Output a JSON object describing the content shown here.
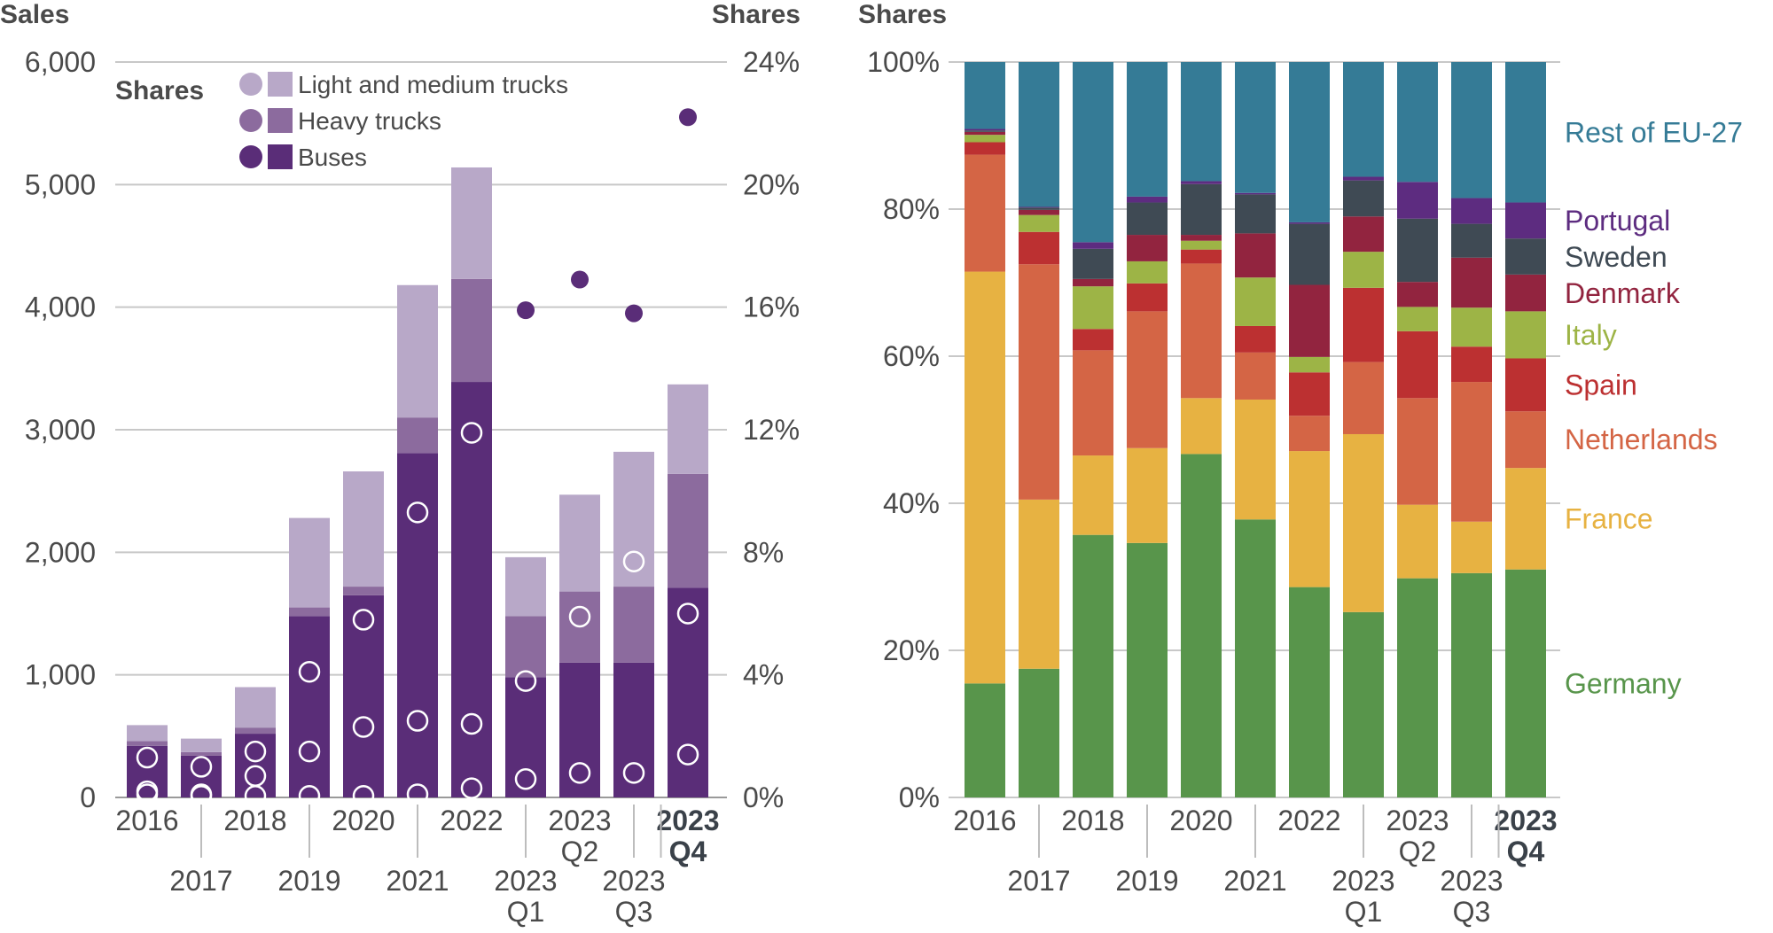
{
  "chart_data": [
    {
      "type": "bar",
      "subtype": "stacked-bar-with-share-markers",
      "categories": [
        "2016",
        "2017",
        "2018",
        "2019",
        "2020",
        "2021",
        "2022",
        "2023 Q1",
        "2023 Q2",
        "2023 Q3",
        "2023 Q4"
      ],
      "x_tick_labels": [
        {
          "line1": "2016",
          "line2": "",
          "row": 1,
          "bold": false
        },
        {
          "line1": "2017",
          "line2": "",
          "row": 2,
          "bold": false
        },
        {
          "line1": "2018",
          "line2": "",
          "row": 1,
          "bold": false
        },
        {
          "line1": "2019",
          "line2": "",
          "row": 2,
          "bold": false
        },
        {
          "line1": "2020",
          "line2": "",
          "row": 1,
          "bold": false
        },
        {
          "line1": "2021",
          "line2": "",
          "row": 2,
          "bold": false
        },
        {
          "line1": "2022",
          "line2": "",
          "row": 1,
          "bold": false
        },
        {
          "line1": "2023",
          "line2": "Q1",
          "row": 2,
          "bold": false
        },
        {
          "line1": "2023",
          "line2": "Q2",
          "row": 1,
          "bold": false
        },
        {
          "line1": "2023",
          "line2": "Q3",
          "row": 2,
          "bold": false
        },
        {
          "line1": "2023",
          "line2": "Q4",
          "row": 1,
          "bold": true
        }
      ],
      "left_axis_title": "Sales",
      "right_axis_title": "Shares",
      "ylim_left": [
        0,
        6000
      ],
      "left_ticks": [
        0,
        1000,
        2000,
        3000,
        4000,
        5000,
        6000
      ],
      "left_tick_labels": [
        "0",
        "1,000",
        "2,000",
        "3,000",
        "4,000",
        "5,000",
        "6,000"
      ],
      "ylim_right": [
        0,
        24
      ],
      "right_ticks": [
        0,
        4,
        8,
        12,
        16,
        20,
        24
      ],
      "right_tick_labels": [
        "0%",
        "4%",
        "8%",
        "12%",
        "16%",
        "20%",
        "24%"
      ],
      "grid": true,
      "legend": {
        "title": "Shares",
        "position": "top-left",
        "entries": [
          "Light and medium trucks",
          "Heavy trucks",
          "Buses"
        ]
      },
      "series": [
        {
          "name": "Buses",
          "color": "#5a2d78",
          "values": [
            420,
            340,
            520,
            1480,
            1650,
            2810,
            3390,
            980,
            1100,
            1100,
            1710
          ],
          "share_pct": [
            1.3,
            1.0,
            1.5,
            4.1,
            5.8,
            9.3,
            11.9,
            15.9,
            16.9,
            15.8,
            22.2
          ]
        },
        {
          "name": "Heavy trucks",
          "color": "#8c6b9e",
          "values": [
            40,
            30,
            50,
            70,
            70,
            290,
            840,
            500,
            580,
            620,
            930
          ],
          "share_pct": [
            0.1,
            0.05,
            0.05,
            0.05,
            0.05,
            0.1,
            0.3,
            0.6,
            0.8,
            0.8,
            1.4
          ]
        },
        {
          "name": "Light and medium trucks",
          "color": "#b8a8c8",
          "values": [
            130,
            110,
            330,
            730,
            940,
            1080,
            910,
            480,
            790,
            1100,
            730
          ],
          "share_pct": [
            0.2,
            0.1,
            0.7,
            1.5,
            2.3,
            2.5,
            2.4,
            3.8,
            5.9,
            7.7,
            6.0
          ]
        }
      ]
    },
    {
      "type": "bar",
      "subtype": "100%-stacked-bar",
      "categories": [
        "2016",
        "2017",
        "2018",
        "2019",
        "2020",
        "2021",
        "2022",
        "2023 Q1",
        "2023 Q2",
        "2023 Q3",
        "2023 Q4"
      ],
      "x_tick_labels": [
        {
          "line1": "2016",
          "line2": "",
          "row": 1,
          "bold": false
        },
        {
          "line1": "2017",
          "line2": "",
          "row": 2,
          "bold": false
        },
        {
          "line1": "2018",
          "line2": "",
          "row": 1,
          "bold": false
        },
        {
          "line1": "2019",
          "line2": "",
          "row": 2,
          "bold": false
        },
        {
          "line1": "2020",
          "line2": "",
          "row": 1,
          "bold": false
        },
        {
          "line1": "2021",
          "line2": "",
          "row": 2,
          "bold": false
        },
        {
          "line1": "2022",
          "line2": "",
          "row": 1,
          "bold": false
        },
        {
          "line1": "2023",
          "line2": "Q1",
          "row": 2,
          "bold": false
        },
        {
          "line1": "2023",
          "line2": "Q2",
          "row": 1,
          "bold": false
        },
        {
          "line1": "2023",
          "line2": "Q3",
          "row": 2,
          "bold": false
        },
        {
          "line1": "2023",
          "line2": "Q4",
          "row": 1,
          "bold": true
        }
      ],
      "y_axis_title": "Shares",
      "ylim": [
        0,
        100
      ],
      "y_ticks": [
        0,
        20,
        40,
        60,
        80,
        100
      ],
      "y_tick_labels": [
        "0%",
        "20%",
        "40%",
        "60%",
        "80%",
        "100%"
      ],
      "grid": true,
      "legend": {
        "position": "right",
        "style": "direct labels"
      },
      "series": [
        {
          "name": "Germany",
          "color": "#58954b",
          "values": [
            15.5,
            17.5,
            35.7,
            34.6,
            46.7,
            37.8,
            28.6,
            25.2,
            29.8,
            30.5,
            31.0
          ]
        },
        {
          "name": "France",
          "color": "#e7b242",
          "values": [
            56.0,
            23.0,
            10.8,
            12.9,
            7.6,
            16.3,
            18.5,
            24.2,
            10.0,
            7.0,
            13.8
          ]
        },
        {
          "name": "Netherlands",
          "color": "#d46545",
          "values": [
            15.9,
            32.0,
            14.3,
            18.6,
            18.3,
            6.4,
            4.8,
            9.8,
            14.5,
            19.0,
            7.7
          ]
        },
        {
          "name": "Spain",
          "color": "#bc3031",
          "values": [
            1.7,
            4.4,
            2.9,
            3.8,
            1.9,
            3.6,
            5.9,
            10.1,
            9.1,
            4.8,
            7.2
          ]
        },
        {
          "name": "Italy",
          "color": "#9db446",
          "values": [
            1.0,
            2.3,
            5.8,
            3.0,
            1.2,
            6.6,
            2.1,
            4.9,
            3.3,
            5.3,
            6.4
          ]
        },
        {
          "name": "Denmark",
          "color": "#92243f",
          "values": [
            0.4,
            0.7,
            1.0,
            3.6,
            0.8,
            6.0,
            9.8,
            4.8,
            3.4,
            6.8,
            5.0
          ]
        },
        {
          "name": "Sweden",
          "color": "#3f4a54",
          "values": [
            0.2,
            0.3,
            4.1,
            4.4,
            6.9,
            5.3,
            8.3,
            4.9,
            8.6,
            4.6,
            4.9
          ]
        },
        {
          "name": "Portugal",
          "color": "#5d2c80",
          "values": [
            0.2,
            0.1,
            0.9,
            0.8,
            0.4,
            0.2,
            0.2,
            0.5,
            5.0,
            3.5,
            4.9
          ]
        },
        {
          "name": "Rest of EU-27",
          "color": "#357b96",
          "values": [
            9.1,
            19.7,
            24.5,
            18.3,
            16.2,
            17.8,
            21.8,
            15.6,
            16.3,
            18.5,
            19.1
          ]
        }
      ]
    }
  ]
}
